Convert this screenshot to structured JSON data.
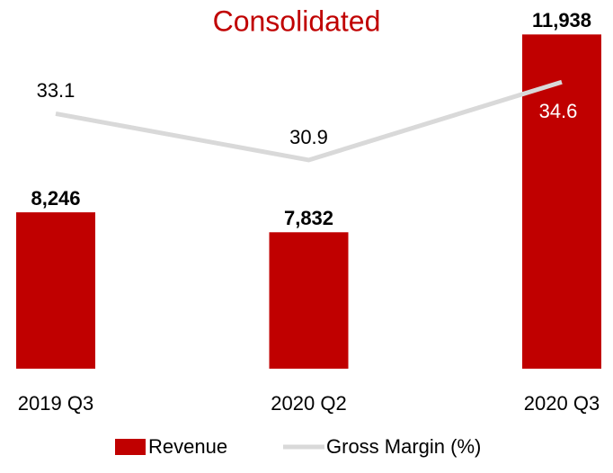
{
  "chart_data": {
    "type": "bar_line",
    "title": "Consolidated",
    "categories": [
      "2019 Q3",
      "2020 Q2",
      "2020 Q3"
    ],
    "series": [
      {
        "name": "Revenue",
        "type": "bar",
        "color": "#c00000",
        "values": [
          8246,
          7832,
          11938
        ],
        "value_labels": [
          "8,246",
          "7,832",
          "11,938"
        ]
      },
      {
        "name": "Gross Margin (%)",
        "type": "line",
        "axis": "y2",
        "color": "#d9d9d9",
        "values": [
          33.1,
          30.9,
          34.6
        ]
      }
    ],
    "ylim": [
      5000,
      12000
    ],
    "y2lim": [
      21,
      37
    ],
    "grid": false,
    "legend": "bottom"
  }
}
